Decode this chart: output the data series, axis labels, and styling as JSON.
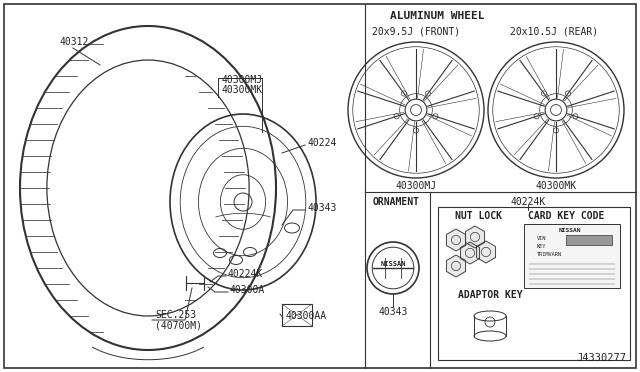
{
  "bg_color": "#ffffff",
  "line_color": "#333333",
  "text_color": "#222222",
  "diagram_number": "J4330277",
  "labels": {
    "aluminum_wheel": "ALUMINUM WHEEL",
    "front_size": "20x9.5J (FRONT)",
    "rear_size": "20x10.5J (REAR)",
    "front_part": "40300MJ",
    "rear_part": "40300MK",
    "ornament": "ORNAMENT",
    "nut_lock": "NUT LOCK",
    "card_key_code": "CARD KEY CODE",
    "adaptor_key": "ADAPTOR KEY",
    "part_40312": "40312",
    "part_40300MJ": "40300MJ",
    "part_40300MK": "40300MK",
    "part_40224": "40224",
    "part_40343_main": "40343",
    "part_40224K": "40224K",
    "part_40300A": "40300A",
    "part_40300AA": "40300AA",
    "part_sec253_1": "SEC.253",
    "part_sec253_2": "(40700M)",
    "part_40343_bot": "40343",
    "part_40224K_top": "40224K"
  },
  "font_size_main": 7.0,
  "font_size_header": 8.0,
  "font_size_diagram_num": 7.5
}
